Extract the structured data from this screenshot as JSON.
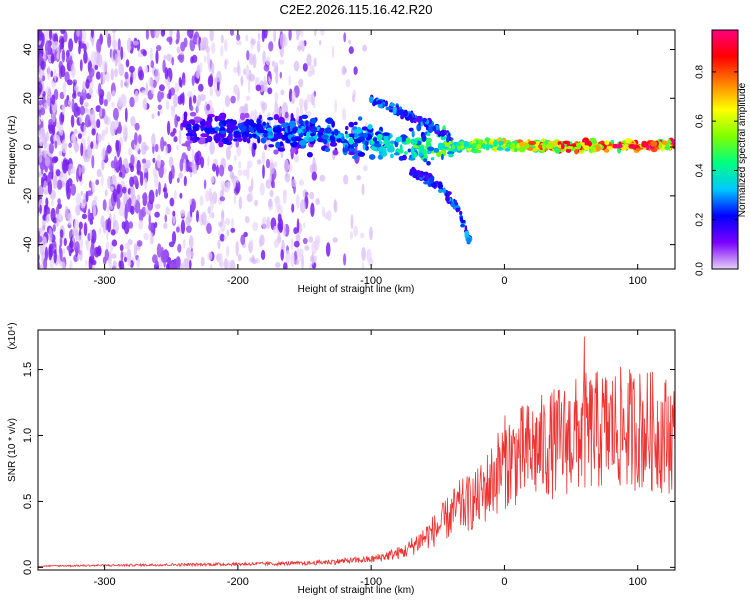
{
  "title": "C2E2.2026.115.16.42.R20",
  "chart_data": [
    {
      "type": "heatmap",
      "name": "spectrogram",
      "title": "C2E2.2026.115.16.42.R20",
      "xlabel": "Height of straight line (km)",
      "ylabel": "Frequency (Hz)",
      "xlim": [
        -350,
        128
      ],
      "ylim": [
        -50,
        48
      ],
      "xticks": [
        -300,
        -200,
        -100,
        0,
        100
      ],
      "yticks": [
        -40,
        -20,
        0,
        20,
        40
      ],
      "colorbar": {
        "label": "Normalized spectral amplitude",
        "range": [
          0.0,
          0.97
        ],
        "ticks": [
          0.0,
          0.2,
          0.4,
          0.6,
          0.8
        ],
        "tick_labels": [
          "0.0",
          "0.2",
          "0.4",
          "0.6",
          "0.8"
        ],
        "colors": [
          "#e8d0f8",
          "#7a00ff",
          "#0000ff",
          "#00c8ff",
          "#00ff80",
          "#80ff00",
          "#ffff00",
          "#ff8000",
          "#ff0000",
          "#ff0080"
        ]
      },
      "features": [
        {
          "description": "diffuse noise",
          "x_range": [
            -350,
            -130
          ],
          "y_range": [
            -50,
            48
          ],
          "amplitude": 0.05
        },
        {
          "description": "main band",
          "x": [
            -240,
            -180,
            -120,
            -80,
            -40,
            0,
            50,
            128
          ],
          "y": [
            8,
            6,
            4,
            1,
            0,
            1,
            0,
            1
          ],
          "amplitude": [
            0.2,
            0.3,
            0.35,
            0.45,
            0.55,
            0.65,
            0.85,
            0.9
          ]
        },
        {
          "description": "upper branch",
          "x": [
            -100,
            -80,
            -60,
            -40
          ],
          "y": [
            20,
            15,
            10,
            4
          ]
        },
        {
          "description": "lower branch",
          "x": [
            -70,
            -50,
            -35,
            -25
          ],
          "y": [
            -10,
            -15,
            -25,
            -40
          ]
        }
      ]
    },
    {
      "type": "line",
      "name": "snr",
      "xlabel": "Height of straight line (km)",
      "ylabel": "SNR (10 * v/v)",
      "y_scale_label": "(x10⁴)",
      "xlim": [
        -350,
        128
      ],
      "ylim": [
        -0.02,
        1.8
      ],
      "xticks": [
        -300,
        -200,
        -100,
        0,
        100
      ],
      "yticks": [
        0.0,
        0.5,
        1.0,
        1.5
      ],
      "ytick_labels": [
        "0.0",
        "0.5",
        "1.0",
        "1.5"
      ],
      "color": "#ee3333",
      "envelope": {
        "x": [
          -350,
          -250,
          -150,
          -100,
          -75,
          -50,
          -35,
          -20,
          -10,
          0,
          20,
          40,
          60,
          80,
          100,
          128
        ],
        "y": [
          0.01,
          0.02,
          0.03,
          0.06,
          0.12,
          0.3,
          0.45,
          0.52,
          0.65,
          0.8,
          0.88,
          0.95,
          1.02,
          1.05,
          1.05,
          1.0
        ]
      },
      "peak": {
        "x": 60,
        "y": 1.75
      }
    }
  ]
}
